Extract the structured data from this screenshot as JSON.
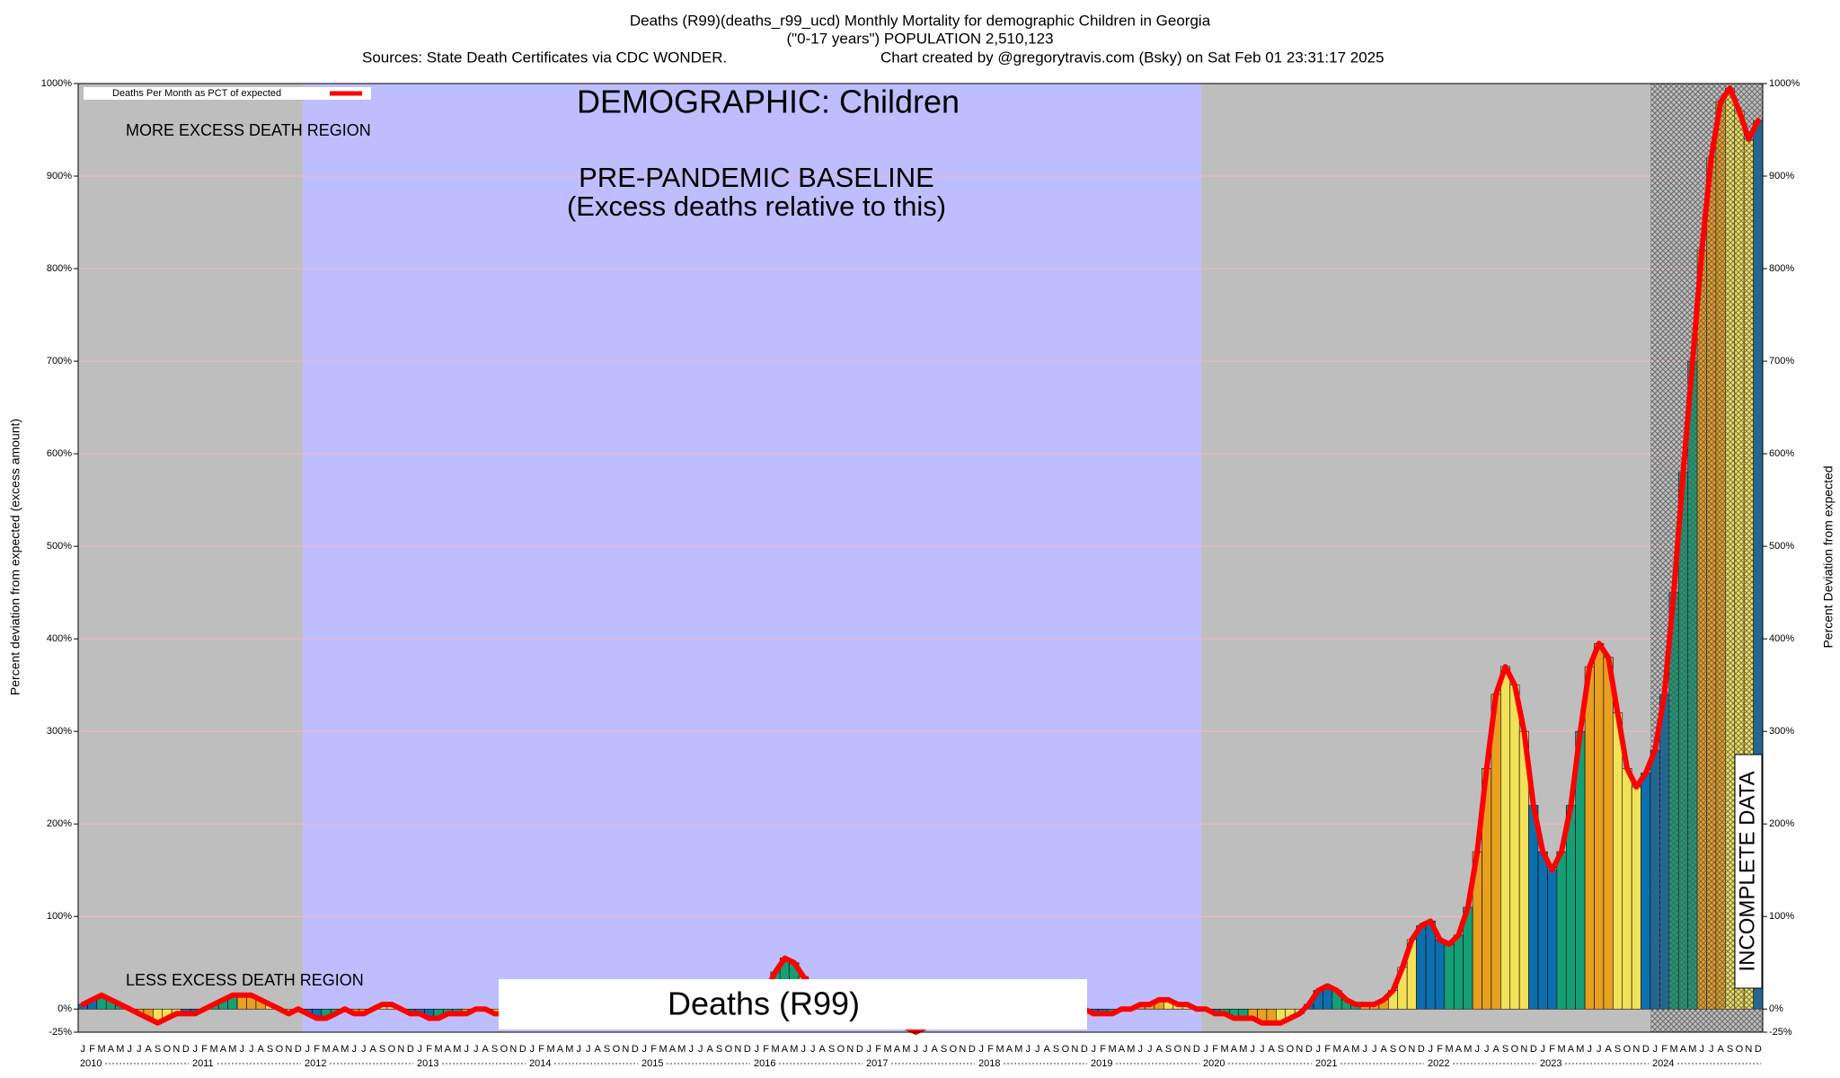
{
  "chart_data": {
    "type": "bar",
    "title": "Deaths (R99)(deaths_r99_ucd) Monthly Mortality for demographic Children in Georgia",
    "subtitle": "(\"0-17 years\") POPULATION 2,510,123",
    "source": "Sources: State Death Certificates via CDC WONDER.",
    "credit": "Chart created by @gregorytravis.com (Bsky) on Sat Feb 01 23:31:17 2025",
    "y_label": "Percent deviation from expected (excess amount)",
    "y2_label": "Percent Deviation from expected",
    "demographic_label": "DEMOGRAPHIC: Children",
    "series_label": "Deaths (R99)",
    "legend_label": "Deaths Per Month as PCT of expected",
    "annotations": [
      "MORE EXCESS DEATH REGION",
      "LESS EXCESS DEATH REGION",
      "PRE-PANDEMIC BASELINE",
      "(Excess deaths relative to this)",
      "INCOMPLETE DATA"
    ],
    "categories": [
      "J",
      "F",
      "M",
      "A",
      "M",
      "J",
      "J",
      "A",
      "S",
      "O",
      "N",
      "D",
      "J",
      "F",
      "M",
      "A",
      "M",
      "J",
      "J",
      "A",
      "S",
      "O",
      "N",
      "D",
      "J",
      "F",
      "M",
      "A",
      "M",
      "J",
      "J",
      "A",
      "S",
      "O",
      "N",
      "D",
      "J",
      "F",
      "M",
      "A",
      "M",
      "J",
      "J",
      "A",
      "S",
      "O",
      "N",
      "D",
      "J",
      "F",
      "M",
      "A",
      "M",
      "J",
      "J",
      "A",
      "S",
      "O",
      "N",
      "D",
      "J",
      "F",
      "M",
      "A",
      "M",
      "J",
      "J",
      "A",
      "S",
      "O",
      "N",
      "D",
      "J",
      "F",
      "M",
      "A",
      "M",
      "J",
      "J",
      "A",
      "S",
      "O",
      "N",
      "D",
      "J",
      "F",
      "M",
      "A",
      "M",
      "J",
      "J",
      "A",
      "S",
      "O",
      "N",
      "D",
      "J",
      "F",
      "M",
      "A",
      "M",
      "J",
      "J",
      "A",
      "S",
      "O",
      "N",
      "D",
      "J",
      "F",
      "M",
      "A",
      "M",
      "J",
      "J",
      "A",
      "S",
      "O",
      "N",
      "D",
      "J",
      "F",
      "M",
      "A",
      "M",
      "J",
      "J",
      "A",
      "S",
      "O",
      "N",
      "D",
      "J",
      "F",
      "M",
      "A",
      "M",
      "J",
      "J",
      "A",
      "S",
      "O",
      "N",
      "D",
      "J",
      "F",
      "M",
      "A",
      "M",
      "J",
      "J",
      "A",
      "S",
      "O",
      "N",
      "D",
      "J",
      "F",
      "M",
      "A",
      "M",
      "J",
      "J",
      "A",
      "S",
      "O",
      "N",
      "D",
      "J",
      "F",
      "M",
      "A",
      "M",
      "J",
      "J",
      "A",
      "S",
      "O",
      "N",
      "D"
    ],
    "years": [
      "2010",
      "2011",
      "2012",
      "2013",
      "2014",
      "2015",
      "2016",
      "2017",
      "2018",
      "2019",
      "2020",
      "2021",
      "2022",
      "2023",
      "2024"
    ],
    "values": [
      5,
      10,
      15,
      10,
      5,
      0,
      -5,
      -10,
      -15,
      -10,
      -5,
      -5,
      -5,
      0,
      5,
      10,
      15,
      15,
      15,
      10,
      5,
      0,
      -5,
      0,
      -5,
      -10,
      -10,
      -5,
      0,
      -5,
      -5,
      0,
      5,
      5,
      0,
      -5,
      -5,
      -10,
      -10,
      -5,
      -5,
      -5,
      0,
      0,
      -5,
      -5,
      -5,
      -5,
      -5,
      -5,
      0,
      0,
      -5,
      -5,
      0,
      0,
      -5,
      -5,
      0,
      0,
      0,
      0,
      -5,
      -5,
      0,
      0,
      -5,
      0,
      0,
      -5,
      -5,
      0,
      0,
      20,
      40,
      55,
      50,
      35,
      25,
      20,
      15,
      10,
      5,
      0,
      -5,
      -10,
      -10,
      -15,
      -20,
      -25,
      -20,
      -10,
      -5,
      0,
      0,
      0,
      0,
      -5,
      -5,
      0,
      0,
      -5,
      -5,
      0,
      0,
      -5,
      -5,
      0,
      -5,
      -5,
      -5,
      0,
      0,
      5,
      5,
      10,
      10,
      5,
      5,
      0,
      0,
      -5,
      -5,
      -10,
      -10,
      -10,
      -15,
      -15,
      -15,
      -10,
      -5,
      5,
      20,
      25,
      20,
      10,
      5,
      5,
      5,
      10,
      20,
      45,
      75,
      90,
      95,
      75,
      70,
      80,
      110,
      170,
      260,
      340,
      370,
      350,
      300,
      220,
      170,
      150,
      170,
      220,
      300,
      370,
      395,
      380,
      320,
      260,
      240,
      255,
      280,
      340,
      450,
      580,
      700,
      820,
      920,
      980,
      995,
      970,
      940,
      960
    ],
    "season_colors": [
      "#0b6fae",
      "#14a074",
      "#e8a020",
      "#f1e258"
    ],
    "line_color": "#ff0000",
    "ylim": [
      -25,
      1000
    ],
    "yticks": [
      {
        "value": -25,
        "label": "-25%"
      },
      {
        "value": 0,
        "label": "0%"
      },
      {
        "value": 100,
        "label": "100%"
      },
      {
        "value": 200,
        "label": "200%"
      },
      {
        "value": 300,
        "label": "300%"
      },
      {
        "value": 400,
        "label": "400%"
      },
      {
        "value": 500,
        "label": "500%"
      },
      {
        "value": 600,
        "label": "600%"
      },
      {
        "value": 700,
        "label": "700%"
      },
      {
        "value": 800,
        "label": "800%"
      },
      {
        "value": 900,
        "label": "900%"
      },
      {
        "value": 1000,
        "label": "1000%"
      }
    ],
    "grid": true
  }
}
